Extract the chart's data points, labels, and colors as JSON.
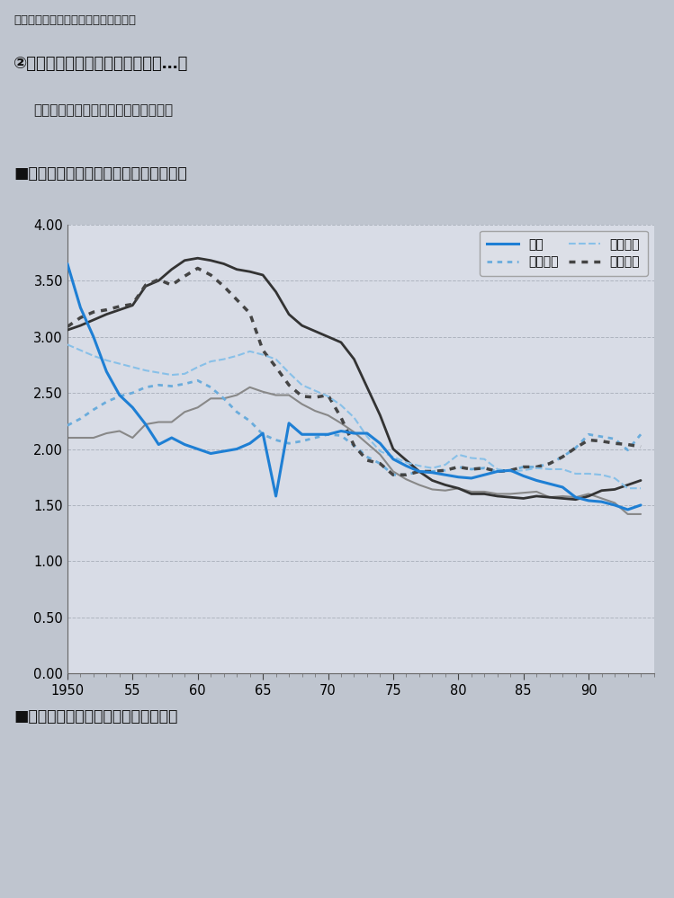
{
  "title_top1": "職後の就業機会の提供など方策など。",
  "title_top2": "②ヨーロッパ諸国の社会保障制度…フ",
  "title_top3": "済支援が手厚く，育児休暇制度や保育",
  "chart_title": "■おもな先進国の合計特殊出生率の推移",
  "bottom_text": "■おもなアジアの国・地域の合計特殊",
  "xlim": [
    1950,
    1995
  ],
  "ylim": [
    0.0,
    4.0
  ],
  "yticks": [
    0.0,
    0.5,
    1.0,
    1.5,
    2.0,
    2.5,
    3.0,
    3.5,
    4.0
  ],
  "xticks": [
    1950,
    1955,
    1960,
    1965,
    1970,
    1975,
    1980,
    1985,
    1990
  ],
  "xtick_labels": [
    "1950",
    "55",
    "60",
    "65",
    "70",
    "75",
    "80",
    "85",
    "90"
  ],
  "background_color": "#bfc5cf",
  "plot_bg_color": "#d8dce6",
  "japan": {
    "years": [
      1950,
      1951,
      1952,
      1953,
      1954,
      1955,
      1956,
      1957,
      1958,
      1959,
      1960,
      1961,
      1962,
      1963,
      1964,
      1965,
      1966,
      1967,
      1968,
      1969,
      1970,
      1971,
      1972,
      1973,
      1974,
      1975,
      1976,
      1977,
      1978,
      1979,
      1980,
      1981,
      1982,
      1983,
      1984,
      1985,
      1986,
      1987,
      1988,
      1989,
      1990,
      1991,
      1992,
      1993,
      1994
    ],
    "values": [
      3.65,
      3.26,
      3.0,
      2.69,
      2.48,
      2.37,
      2.22,
      2.04,
      2.1,
      2.04,
      2.0,
      1.96,
      1.98,
      2.0,
      2.05,
      2.14,
      1.58,
      2.23,
      2.13,
      2.13,
      2.13,
      2.16,
      2.14,
      2.14,
      2.05,
      1.91,
      1.85,
      1.8,
      1.79,
      1.77,
      1.75,
      1.74,
      1.77,
      1.8,
      1.81,
      1.76,
      1.72,
      1.69,
      1.66,
      1.57,
      1.54,
      1.53,
      1.5,
      1.46,
      1.5
    ],
    "color": "#1e7fd4",
    "style": "solid",
    "linewidth": 2.2
  },
  "france": {
    "years": [
      1950,
      1951,
      1952,
      1953,
      1954,
      1955,
      1956,
      1957,
      1958,
      1959,
      1960,
      1961,
      1962,
      1963,
      1964,
      1965,
      1966,
      1967,
      1968,
      1969,
      1970,
      1971,
      1972,
      1973,
      1974,
      1975,
      1976,
      1977,
      1978,
      1979,
      1980,
      1981,
      1982,
      1983,
      1984,
      1985,
      1986,
      1987,
      1988,
      1989,
      1990,
      1991,
      1992,
      1993,
      1994
    ],
    "values": [
      2.93,
      2.88,
      2.83,
      2.79,
      2.76,
      2.73,
      2.7,
      2.68,
      2.66,
      2.67,
      2.73,
      2.78,
      2.8,
      2.83,
      2.87,
      2.84,
      2.8,
      2.68,
      2.57,
      2.52,
      2.47,
      2.39,
      2.28,
      2.11,
      1.98,
      1.93,
      1.88,
      1.85,
      1.83,
      1.86,
      1.95,
      1.92,
      1.91,
      1.82,
      1.8,
      1.81,
      1.83,
      1.82,
      1.82,
      1.78,
      1.78,
      1.77,
      1.74,
      1.65,
      1.65
    ],
    "color": "#88c0e8",
    "style": "dashed",
    "linewidth": 1.5
  },
  "usa": {
    "years": [
      1950,
      1951,
      1952,
      1953,
      1954,
      1955,
      1956,
      1957,
      1958,
      1959,
      1960,
      1961,
      1962,
      1963,
      1964,
      1965,
      1966,
      1967,
      1968,
      1969,
      1970,
      1971,
      1972,
      1973,
      1974,
      1975,
      1976,
      1977,
      1978,
      1979,
      1980,
      1981,
      1982,
      1983,
      1984,
      1985,
      1986,
      1987,
      1988,
      1989,
      1990,
      1991,
      1992,
      1993,
      1994
    ],
    "values": [
      3.09,
      3.17,
      3.22,
      3.24,
      3.27,
      3.29,
      3.46,
      3.51,
      3.46,
      3.54,
      3.61,
      3.55,
      3.45,
      3.33,
      3.21,
      2.88,
      2.73,
      2.57,
      2.47,
      2.46,
      2.48,
      2.28,
      2.03,
      1.9,
      1.87,
      1.77,
      1.77,
      1.8,
      1.8,
      1.81,
      1.84,
      1.82,
      1.83,
      1.8,
      1.81,
      1.84,
      1.84,
      1.87,
      1.93,
      2.01,
      2.08,
      2.07,
      2.05,
      2.04,
      2.02
    ],
    "color": "#444444",
    "style": "dotted",
    "linewidth": 2.5
  },
  "sweden": {
    "years": [
      1950,
      1951,
      1952,
      1953,
      1954,
      1955,
      1956,
      1957,
      1958,
      1959,
      1960,
      1961,
      1962,
      1963,
      1964,
      1965,
      1966,
      1967,
      1968,
      1969,
      1970,
      1971,
      1972,
      1973,
      1974,
      1975,
      1976,
      1977,
      1978,
      1979,
      1980,
      1981,
      1982,
      1983,
      1984,
      1985,
      1986,
      1987,
      1988,
      1989,
      1990,
      1991,
      1992,
      1993,
      1994
    ],
    "values": [
      2.21,
      2.27,
      2.35,
      2.42,
      2.47,
      2.5,
      2.55,
      2.57,
      2.56,
      2.58,
      2.61,
      2.55,
      2.45,
      2.33,
      2.25,
      2.13,
      2.08,
      2.05,
      2.07,
      2.1,
      2.13,
      2.12,
      2.03,
      1.93,
      1.87,
      1.77,
      1.77,
      1.8,
      1.8,
      1.81,
      1.84,
      1.82,
      1.83,
      1.8,
      1.81,
      1.84,
      1.84,
      1.87,
      1.93,
      2.01,
      2.13,
      2.11,
      2.09,
      1.99,
      2.13
    ],
    "color": "#6aacdc",
    "style": "dotted",
    "linewidth": 2.0
  },
  "germany": {
    "years": [
      1950,
      1951,
      1952,
      1953,
      1954,
      1955,
      1956,
      1957,
      1958,
      1959,
      1960,
      1961,
      1962,
      1963,
      1964,
      1965,
      1966,
      1967,
      1968,
      1969,
      1970,
      1971,
      1972,
      1973,
      1974,
      1975,
      1976,
      1977,
      1978,
      1979,
      1980,
      1981,
      1982,
      1983,
      1984,
      1985,
      1986,
      1987,
      1988,
      1989,
      1990,
      1991,
      1992,
      1993,
      1994
    ],
    "values": [
      2.1,
      2.1,
      2.1,
      2.14,
      2.16,
      2.1,
      2.22,
      2.24,
      2.24,
      2.33,
      2.37,
      2.45,
      2.45,
      2.48,
      2.55,
      2.51,
      2.48,
      2.48,
      2.4,
      2.34,
      2.3,
      2.23,
      2.15,
      2.05,
      1.95,
      1.8,
      1.73,
      1.68,
      1.64,
      1.63,
      1.65,
      1.62,
      1.62,
      1.6,
      1.6,
      1.61,
      1.62,
      1.57,
      1.58,
      1.57,
      1.6,
      1.56,
      1.52,
      1.42,
      1.42
    ],
    "color": "#888888",
    "style": "solid",
    "linewidth": 1.5
  },
  "dark_solid": {
    "years": [
      1950,
      1951,
      1952,
      1953,
      1954,
      1955,
      1956,
      1957,
      1958,
      1959,
      1960,
      1961,
      1962,
      1963,
      1964,
      1965,
      1966,
      1967,
      1968,
      1969,
      1970,
      1971,
      1972,
      1973,
      1974,
      1975,
      1976,
      1977,
      1978,
      1979,
      1980,
      1981,
      1982,
      1983,
      1984,
      1985,
      1986,
      1987,
      1988,
      1989,
      1990,
      1991,
      1992,
      1993,
      1994
    ],
    "values": [
      3.06,
      3.1,
      3.15,
      3.2,
      3.24,
      3.28,
      3.45,
      3.5,
      3.6,
      3.68,
      3.7,
      3.68,
      3.65,
      3.6,
      3.58,
      3.55,
      3.4,
      3.2,
      3.1,
      3.05,
      3.0,
      2.95,
      2.8,
      2.55,
      2.3,
      2.0,
      1.9,
      1.8,
      1.72,
      1.68,
      1.65,
      1.6,
      1.6,
      1.58,
      1.57,
      1.56,
      1.58,
      1.57,
      1.56,
      1.55,
      1.58,
      1.63,
      1.64,
      1.68,
      1.72
    ],
    "color": "#333333",
    "style": "solid",
    "linewidth": 2.0
  }
}
